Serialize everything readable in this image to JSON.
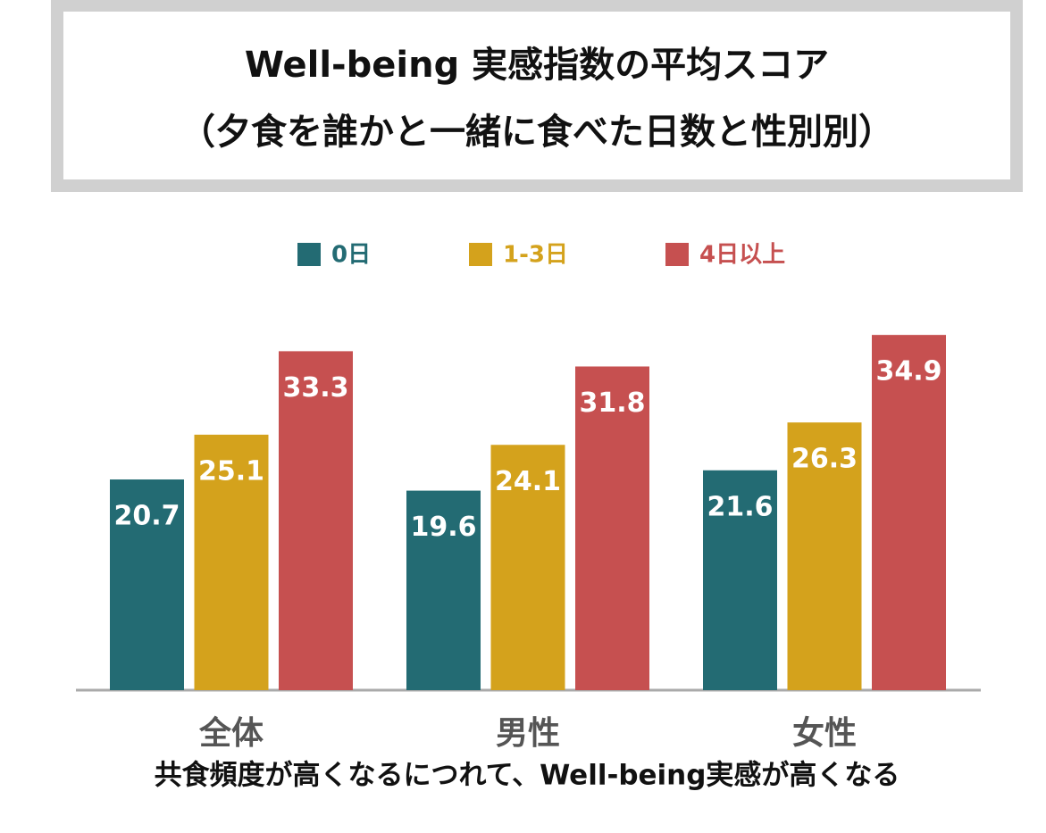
{
  "chart_data": {
    "type": "bar",
    "title": "Well-being 実感指数の平均スコア",
    "subtitle": "（夕食を誰かと一緒に食べた日数と性別別）",
    "categories": [
      "全体",
      "男性",
      "女性"
    ],
    "series": [
      {
        "name": "0日",
        "color": "#236b73",
        "values": [
          20.7,
          19.6,
          21.6
        ]
      },
      {
        "name": "1-3日",
        "color": "#d4a21c",
        "values": [
          25.1,
          24.1,
          26.3
        ]
      },
      {
        "name": "4日以上",
        "color": "#c65050",
        "values": [
          33.3,
          31.8,
          34.9
        ]
      }
    ],
    "ylim": [
      0,
      35
    ],
    "legend": "top",
    "annotation": "共食頻度が高くなるにつれて、Well-being実感が高くなる"
  }
}
